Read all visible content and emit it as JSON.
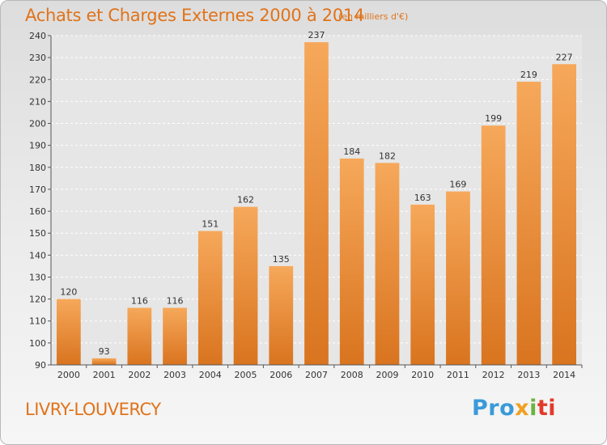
{
  "header": {
    "title": "Achats et Charges Externes 2000 à 2014",
    "unit_note": "(en milliers d'€)"
  },
  "footer": {
    "city": "LIVRY-LOUVERCY",
    "logo": [
      "Pro",
      "x",
      "i",
      "ti"
    ]
  },
  "colors": {
    "title": "#e0731a",
    "bar_light": "#f6a85a",
    "bar_dark": "#d9741f",
    "logo_blue": "#3a9ad9",
    "logo_orange": "#f0a020",
    "logo_green": "#6cb33f",
    "logo_red": "#e2392c"
  },
  "chart_data": {
    "type": "bar",
    "title": "Achats et Charges Externes 2000 à 2014",
    "subtitle": "(en milliers d'€)",
    "categories": [
      "2000",
      "2001",
      "2002",
      "2003",
      "2004",
      "2005",
      "2006",
      "2007",
      "2008",
      "2009",
      "2010",
      "2011",
      "2012",
      "2013",
      "2014"
    ],
    "values": [
      120,
      93,
      116,
      116,
      151,
      162,
      135,
      237,
      184,
      182,
      163,
      169,
      199,
      219,
      227
    ],
    "ylim": [
      90,
      240
    ],
    "yticks": [
      90,
      100,
      110,
      120,
      130,
      140,
      150,
      160,
      170,
      180,
      190,
      200,
      210,
      220,
      230,
      240
    ],
    "grid": true,
    "legend": "none"
  }
}
